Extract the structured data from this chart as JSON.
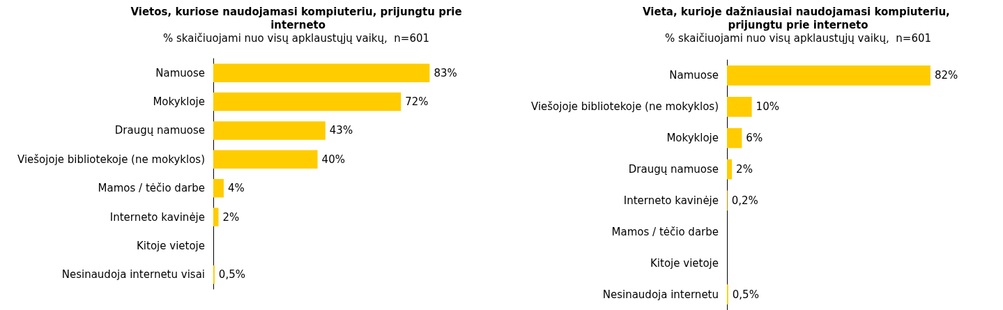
{
  "chart_data": [
    {
      "type": "bar",
      "orientation": "horizontal",
      "title": "Vietos, kuriose naudojamasi kompiuteriu, prijungtu prie interneto",
      "subtitle": "% skaičiuojami nuo visų apklaustųjų vaikų,  n=601",
      "categories": [
        "Namuose",
        "Mokykloje",
        "Draugų namuose",
        "Viešojoje bibliotekoje (ne mokyklos)",
        "Mamos / tėčio darbe",
        "Interneto kavinėje",
        "Kitoje vietoje",
        "Nesinaudoja internetu visai"
      ],
      "values": [
        83,
        72,
        43,
        40,
        4,
        2,
        null,
        0.5
      ],
      "value_labels": [
        "83%",
        "72%",
        "43%",
        "40%",
        "4%",
        "2%",
        null,
        "0,5%"
      ],
      "color": "#ffcc00"
    },
    {
      "type": "bar",
      "orientation": "horizontal",
      "title": "Vieta, kurioje dažniausiai naudojamasi kompiuteriu, prijungtu prie interneto",
      "subtitle": "% skaičiuojami nuo visų apklaustųjų vaikų,  n=601",
      "categories": [
        "Namuose",
        "Viešojoje bibliotekoje (ne mokyklos)",
        "Mokykloje",
        "Draugų namuose",
        "Interneto kavinėje",
        "Mamos / tėčio darbe",
        "Kitoje vietoje",
        "Nesinaudoja internetu"
      ],
      "values": [
        82,
        10,
        6,
        2,
        0.2,
        null,
        null,
        0.5
      ],
      "value_labels": [
        "82%",
        "10%",
        "6%",
        "2%",
        "0,2%",
        null,
        null,
        "0,5%"
      ],
      "color": "#ffcc00"
    }
  ]
}
